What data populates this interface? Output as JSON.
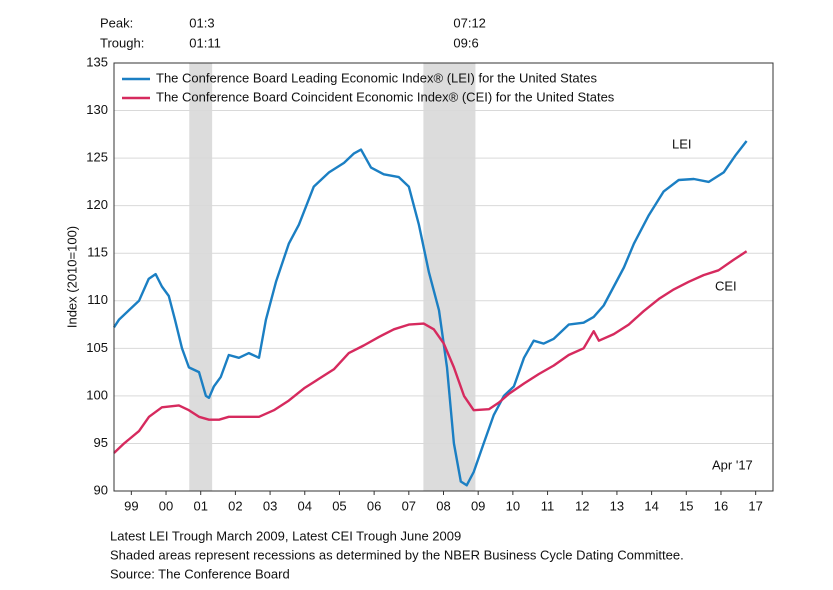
{
  "chart_data": {
    "type": "line",
    "y_axis_label": "Index (2010=100)",
    "peak_label": "Peak:",
    "trough_label": "Trough:",
    "recessions": [
      {
        "peak": "01:3",
        "trough": "01:11",
        "start": 2001.17,
        "end": 2001.83
      },
      {
        "peak": "07:12",
        "trough": "09:6",
        "start": 2007.92,
        "end": 2009.42
      }
    ],
    "recession_color": "#dcdcdc",
    "series": [
      {
        "name": "The Conference Board Leading Economic Index® (LEI) for the United States",
        "label": "LEI",
        "color": "#1b7fc3",
        "x": [
          1999.0,
          1999.14,
          1999.43,
          1999.72,
          2000.0,
          2000.2,
          2000.38,
          2000.58,
          2000.76,
          2000.96,
          2001.16,
          2001.45,
          2001.65,
          2001.74,
          2001.88,
          2002.08,
          2002.31,
          2002.6,
          2002.89,
          2003.18,
          2003.38,
          2003.67,
          2004.04,
          2004.33,
          2004.76,
          2005.2,
          2005.63,
          2005.92,
          2006.12,
          2006.41,
          2006.78,
          2007.21,
          2007.5,
          2007.79,
          2008.08,
          2008.37,
          2008.6,
          2008.8,
          2009.0,
          2009.17,
          2009.37,
          2009.66,
          2009.95,
          2010.24,
          2010.53,
          2010.82,
          2011.1,
          2011.39,
          2011.68,
          2012.11,
          2012.54,
          2012.83,
          2013.12,
          2013.41,
          2013.7,
          2013.99,
          2014.42,
          2014.85,
          2015.28,
          2015.72,
          2016.15,
          2016.58,
          2016.92,
          2017.24
        ],
        "values": [
          107.2,
          108,
          109,
          110,
          112.3,
          112.8,
          111.5,
          110.5,
          108,
          105,
          103,
          102.5,
          100,
          99.8,
          101,
          102,
          104.3,
          104,
          104.5,
          104,
          108,
          112,
          116,
          118,
          122,
          123.5,
          124.5,
          125.5,
          125.9,
          124,
          123.3,
          123,
          122,
          118,
          113,
          109,
          103,
          95,
          91,
          90.6,
          92,
          95,
          98,
          100,
          101,
          104,
          105.8,
          105.5,
          106,
          107.5,
          107.7,
          108.3,
          109.5,
          111.5,
          113.5,
          116,
          119,
          121.5,
          122.7,
          122.8,
          122.5,
          123.5,
          125.3,
          126.8
        ]
      },
      {
        "name": "The Conference Board Coincident Economic Index® (CEI) for the United States",
        "label": "CEI",
        "color": "#d62a5e",
        "x": [
          1999.0,
          1999.29,
          1999.72,
          2000.01,
          2000.38,
          2000.87,
          2001.16,
          2001.45,
          2001.74,
          2002.03,
          2002.31,
          2002.75,
          2003.18,
          2003.61,
          2004.04,
          2004.48,
          2004.91,
          2005.34,
          2005.77,
          2006.2,
          2006.64,
          2007.07,
          2007.5,
          2007.93,
          2008.22,
          2008.51,
          2008.8,
          2009.09,
          2009.37,
          2009.81,
          2010.1,
          2010.38,
          2010.82,
          2011.25,
          2011.68,
          2012.11,
          2012.54,
          2012.83,
          2012.98,
          2013.41,
          2013.84,
          2014.27,
          2014.71,
          2015.14,
          2015.57,
          2016.0,
          2016.43,
          2016.86,
          2017.24
        ],
        "values": [
          94,
          95,
          96.3,
          97.8,
          98.8,
          99,
          98.5,
          97.8,
          97.5,
          97.5,
          97.8,
          97.8,
          97.8,
          98.5,
          99.5,
          100.8,
          101.8,
          102.8,
          104.5,
          105.3,
          106.2,
          107,
          107.5,
          107.6,
          107,
          105.5,
          103,
          100,
          98.5,
          98.6,
          99.3,
          100.2,
          101.3,
          102.3,
          103.2,
          104.3,
          105,
          106.8,
          105.8,
          106.5,
          107.5,
          108.9,
          110.2,
          111.2,
          112,
          112.7,
          113.2,
          114.3,
          115.2
        ]
      }
    ],
    "date_note": "Apr '17",
    "xlim": [
      1999,
      2018
    ],
    "xticks": [
      {
        "value": 1999.5,
        "label": "99"
      },
      {
        "value": 2000.5,
        "label": "00"
      },
      {
        "value": 2001.5,
        "label": "01"
      },
      {
        "value": 2002.5,
        "label": "02"
      },
      {
        "value": 2003.5,
        "label": "03"
      },
      {
        "value": 2004.5,
        "label": "04"
      },
      {
        "value": 2005.5,
        "label": "05"
      },
      {
        "value": 2006.5,
        "label": "06"
      },
      {
        "value": 2007.5,
        "label": "07"
      },
      {
        "value": 2008.5,
        "label": "08"
      },
      {
        "value": 2009.5,
        "label": "09"
      },
      {
        "value": 2010.5,
        "label": "10"
      },
      {
        "value": 2011.5,
        "label": "11"
      },
      {
        "value": 2012.5,
        "label": "12"
      },
      {
        "value": 2013.5,
        "label": "13"
      },
      {
        "value": 2014.5,
        "label": "14"
      },
      {
        "value": 2015.5,
        "label": "15"
      },
      {
        "value": 2016.5,
        "label": "16"
      },
      {
        "value": 2017.5,
        "label": "17"
      }
    ],
    "ylim": [
      90,
      135
    ],
    "yticks": [
      90,
      95,
      100,
      105,
      110,
      115,
      120,
      125,
      130,
      135
    ],
    "grid": true,
    "legend": "top-left",
    "notes": [
      "Latest LEI Trough March 2009, Latest CEI Trough June 2009",
      "Shaded areas represent recessions as determined by the NBER Business Cycle Dating Committee.",
      "Source: The Conference Board"
    ]
  }
}
